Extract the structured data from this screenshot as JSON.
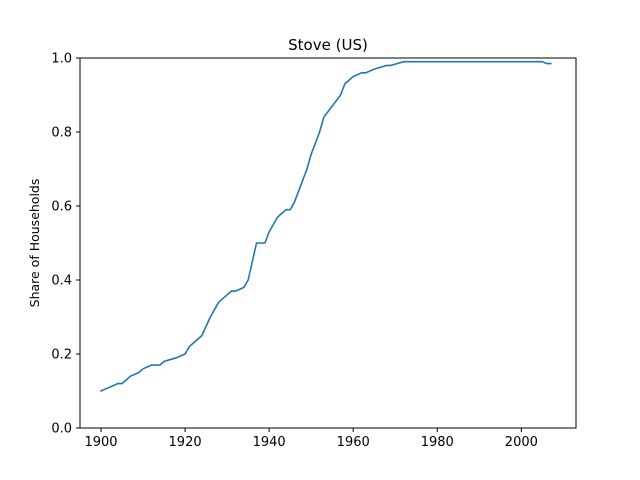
{
  "chart_data": {
    "type": "line",
    "title": "Stove (US)",
    "xlabel": "",
    "ylabel": "Share of Households",
    "xlim": [
      1895,
      2013
    ],
    "ylim": [
      0.0,
      1.0
    ],
    "x_ticks": [
      1900,
      1920,
      1940,
      1960,
      1980,
      2000
    ],
    "y_ticks": [
      0.0,
      0.2,
      0.4,
      0.6,
      0.8,
      1.0
    ],
    "y_tick_labels": [
      "0.0",
      "0.2",
      "0.4",
      "0.6",
      "0.8",
      "1.0"
    ],
    "grid": false,
    "legend": "none",
    "series": [
      {
        "color": "#1f77b4",
        "points": [
          [
            1900,
            0.1
          ],
          [
            1902,
            0.11
          ],
          [
            1904,
            0.12
          ],
          [
            1905,
            0.12
          ],
          [
            1907,
            0.14
          ],
          [
            1909,
            0.15
          ],
          [
            1910,
            0.16
          ],
          [
            1912,
            0.17
          ],
          [
            1914,
            0.17
          ],
          [
            1915,
            0.18
          ],
          [
            1918,
            0.19
          ],
          [
            1920,
            0.2
          ],
          [
            1921,
            0.22
          ],
          [
            1922,
            0.23
          ],
          [
            1924,
            0.25
          ],
          [
            1926,
            0.3
          ],
          [
            1928,
            0.34
          ],
          [
            1930,
            0.36
          ],
          [
            1931,
            0.37
          ],
          [
            1932,
            0.37
          ],
          [
            1934,
            0.38
          ],
          [
            1935,
            0.4
          ],
          [
            1937,
            0.5
          ],
          [
            1939,
            0.5
          ],
          [
            1940,
            0.53
          ],
          [
            1942,
            0.57
          ],
          [
            1944,
            0.59
          ],
          [
            1945,
            0.59
          ],
          [
            1946,
            0.61
          ],
          [
            1949,
            0.7
          ],
          [
            1950,
            0.74
          ],
          [
            1952,
            0.8
          ],
          [
            1953,
            0.84
          ],
          [
            1955,
            0.87
          ],
          [
            1957,
            0.9
          ],
          [
            1958,
            0.93
          ],
          [
            1960,
            0.95
          ],
          [
            1962,
            0.96
          ],
          [
            1963,
            0.96
          ],
          [
            1965,
            0.97
          ],
          [
            1968,
            0.98
          ],
          [
            1969,
            0.98
          ],
          [
            1972,
            0.99
          ],
          [
            2005,
            0.99
          ],
          [
            2006,
            0.985
          ],
          [
            2007,
            0.985
          ]
        ]
      }
    ]
  }
}
